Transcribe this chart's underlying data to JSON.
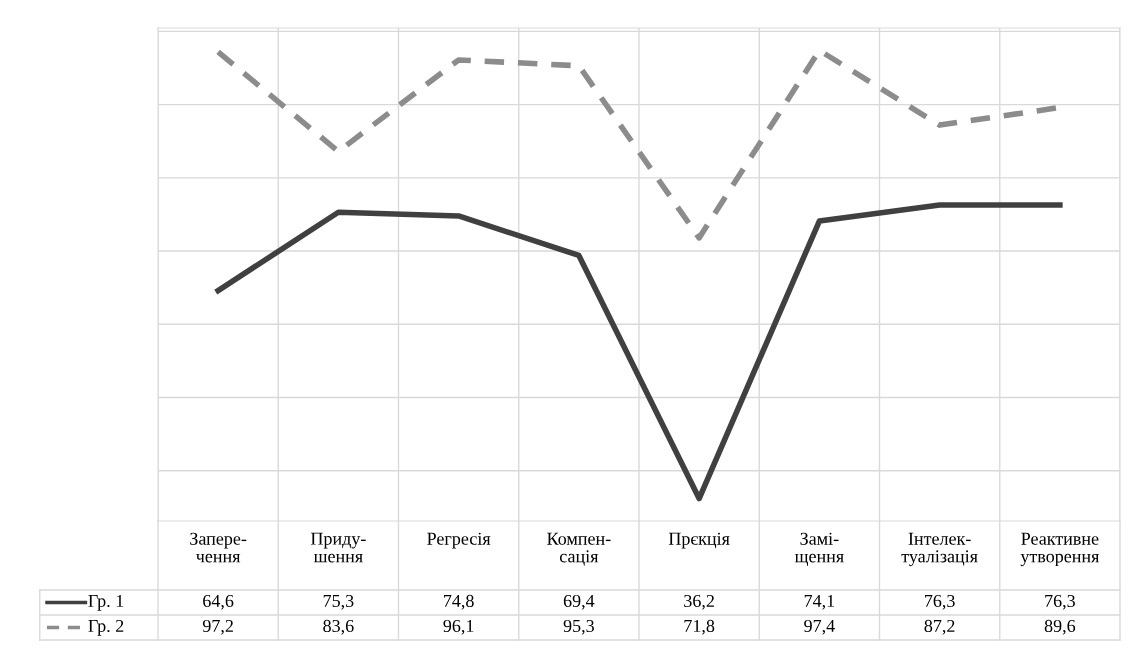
{
  "chart_data": {
    "type": "line",
    "categories": [
      "Запере-\nчення",
      "Приду-\nшення",
      "Регресія",
      "Компен-\nсація",
      "Прєкція",
      "Замі-\nщення",
      "Інтелек-\nтуалізація",
      "Реактивне\nутворення"
    ],
    "series": [
      {
        "name": "Гр. 1",
        "color": "#404040",
        "line_style": "solid",
        "values": [
          64.6,
          75.3,
          74.8,
          69.4,
          36.2,
          74.1,
          76.3,
          76.3
        ],
        "value_labels": [
          "64,6",
          "75,3",
          "74,8",
          "69,4",
          "36,2",
          "74,1",
          "76,3",
          "76,3"
        ]
      },
      {
        "name": "Гр. 2",
        "color": "#8c8c8c",
        "line_style": "dashed",
        "values": [
          97.2,
          83.6,
          96.1,
          95.3,
          71.8,
          97.4,
          87.2,
          89.6
        ],
        "value_labels": [
          "97,2",
          "83,6",
          "96,1",
          "95,3",
          "71,8",
          "97,4",
          "87,2",
          "89,6"
        ]
      }
    ],
    "grid": true,
    "marker": "none",
    "tick_labels": "x",
    "legend": "bottom left"
  }
}
